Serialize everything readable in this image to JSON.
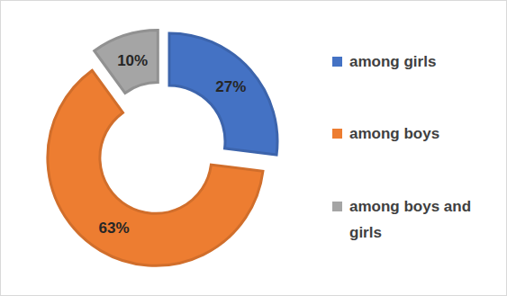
{
  "chart_data": {
    "type": "donut",
    "categories": [
      "among girls",
      "among boys",
      "among boys and girls"
    ],
    "values": [
      27,
      63,
      10
    ],
    "value_labels": [
      "27%",
      "63%",
      "10%"
    ],
    "colors": [
      "#4472c4",
      "#ed7d31",
      "#a5a5a5"
    ],
    "data_labels": true,
    "legend": "right"
  }
}
